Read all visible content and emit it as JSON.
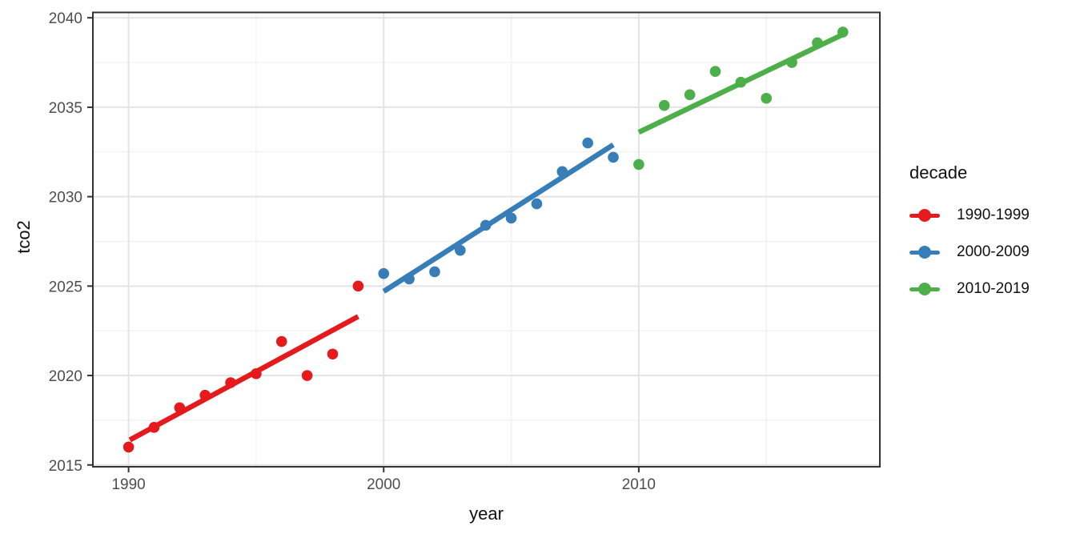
{
  "figure": {
    "background": "#ffffff",
    "panel_border_color": "#333333",
    "grid_major_color": "#e4e4e4",
    "grid_minor_color": "#f0f0f0",
    "tick_color": "#333333",
    "tick_label_color": "#4d4d4d",
    "text_color": "#111111"
  },
  "chart_data": {
    "type": "scatter",
    "xlabel": "year",
    "ylabel": "tco2",
    "legend_title": "decade",
    "legend_position": "right",
    "grid": true,
    "xlim": [
      1988.6,
      2019.45
    ],
    "ylim": [
      2014.9,
      2040.3
    ],
    "x_ticks": [
      1990,
      2000,
      2010
    ],
    "x_minor_ticks": [
      1995,
      2005,
      2015
    ],
    "y_ticks": [
      2015,
      2020,
      2025,
      2030,
      2035,
      2040
    ],
    "y_minor_ticks": [
      2017.5,
      2022.5,
      2027.5,
      2032.5,
      2037.5
    ],
    "point_radius": 6.8,
    "line_width": 6.5,
    "series": [
      {
        "name": "1990-1999",
        "color": "#E41A1C",
        "x": [
          1990,
          1991,
          1992,
          1993,
          1994,
          1995,
          1996,
          1997,
          1998,
          1999
        ],
        "y": [
          2016.0,
          2017.1,
          2018.2,
          2018.9,
          2019.6,
          2020.1,
          2021.9,
          2020.0,
          2021.2,
          2025.0
        ],
        "trend_line": {
          "x1": 1990.05,
          "y1": 2016.4,
          "x2": 1999.0,
          "y2": 2023.3
        }
      },
      {
        "name": "2000-2009",
        "color": "#377EB8",
        "x": [
          2000,
          2001,
          2002,
          2003,
          2004,
          2005,
          2006,
          2007,
          2008,
          2009
        ],
        "y": [
          2025.7,
          2025.4,
          2025.8,
          2027.0,
          2028.4,
          2028.8,
          2029.6,
          2031.4,
          2033.0,
          2032.2
        ],
        "trend_line": {
          "x1": 2000.0,
          "y1": 2024.7,
          "x2": 2009.0,
          "y2": 2032.9
        }
      },
      {
        "name": "2010-2019",
        "color": "#4DAF4A",
        "x": [
          2010,
          2011,
          2012,
          2013,
          2014,
          2015,
          2016,
          2017,
          2018
        ],
        "y": [
          2031.8,
          2035.1,
          2035.7,
          2037.0,
          2036.4,
          2035.5,
          2037.5,
          2038.6,
          2039.2
        ],
        "trend_line": {
          "x1": 2010.0,
          "y1": 2033.6,
          "x2": 2018.05,
          "y2": 2039.1
        }
      }
    ]
  }
}
